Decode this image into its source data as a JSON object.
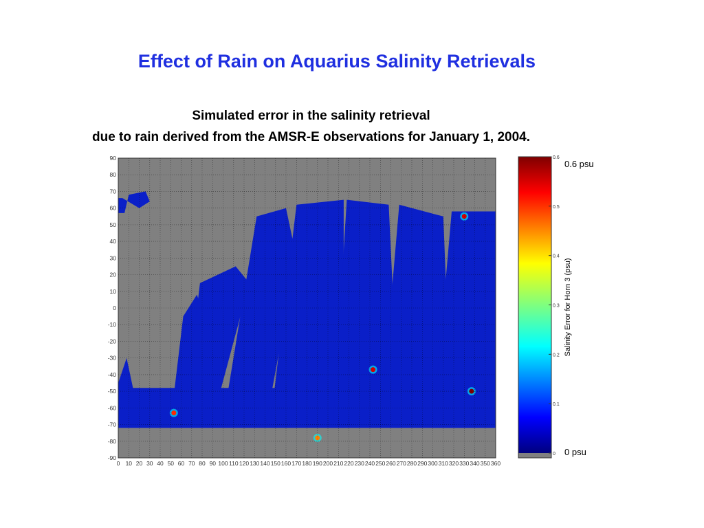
{
  "page": {
    "title": "Effect of Rain on Aquarius Salinity Retrievals",
    "subtitle_line1": "Simulated error in the salinity retrieval",
    "subtitle_line2": "due to rain derived from the AMSR-E observations for January 1, 2004.",
    "colorbar_max_label": "0.6 psu",
    "colorbar_min_label": "0 psu"
  },
  "chart_data": {
    "type": "heatmap",
    "title": "",
    "xlabel": "",
    "ylabel": "",
    "xlim": [
      0,
      360
    ],
    "ylim": [
      -90,
      90
    ],
    "x_ticks": [
      "0",
      "10",
      "20",
      "30",
      "40",
      "50",
      "60",
      "70",
      "80",
      "90",
      "100",
      "110",
      "120",
      "130",
      "140",
      "150",
      "160",
      "170",
      "180",
      "190",
      "200",
      "210",
      "220",
      "230",
      "240",
      "250",
      "260",
      "270",
      "280",
      "290",
      "300",
      "310",
      "320",
      "330",
      "340",
      "350",
      "360"
    ],
    "y_ticks": [
      "90",
      "80",
      "70",
      "60",
      "50",
      "40",
      "30",
      "20",
      "10",
      "0",
      "-10",
      "-20",
      "-30",
      "-40",
      "-50",
      "-60",
      "-70",
      "-80",
      "-90"
    ],
    "grid": true,
    "colorbar": {
      "label": "Salinity Error for Horn 3 (psu)",
      "range": [
        0,
        0.6
      ],
      "ticks": [
        "0.6",
        "0.5",
        "0.4",
        "0.3",
        "0.2",
        "0.1",
        "0"
      ],
      "colormap": "jet"
    },
    "colors": {
      "land_and_no_data": "#808080",
      "ocean_low_error": "#0a1fc8",
      "high_error": "#c00000"
    },
    "swath_count": 7,
    "notable_hotspots": [
      {
        "lon": 337,
        "lat": -50,
        "error_psu": 0.6
      },
      {
        "lon": 330,
        "lat": 55,
        "error_psu": 0.55
      },
      {
        "lon": 243,
        "lat": -37,
        "error_psu": 0.55
      },
      {
        "lon": 53,
        "lat": -63,
        "error_psu": 0.5
      },
      {
        "lon": 190,
        "lat": -78,
        "error_psu": 0.45
      }
    ]
  }
}
